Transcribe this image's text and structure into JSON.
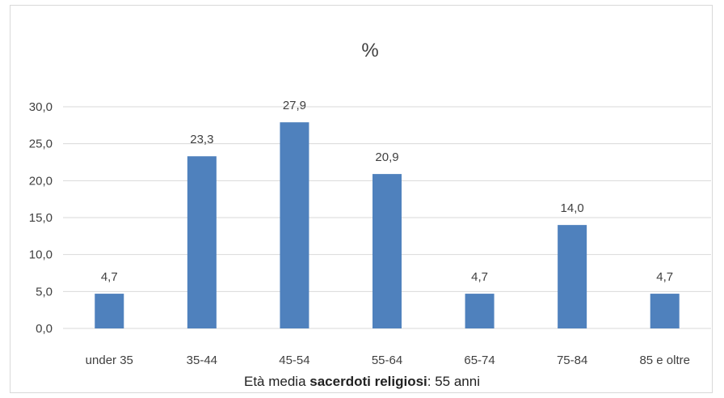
{
  "chart_data": {
    "type": "bar",
    "title": "%",
    "categories": [
      "under 35",
      "35-44",
      "45-54",
      "55-64",
      "65-74",
      "75-84",
      "85 e oltre"
    ],
    "values": [
      4.7,
      23.3,
      27.9,
      20.9,
      4.7,
      14.0,
      4.7
    ],
    "value_labels": [
      "4,7",
      "23,3",
      "27,9",
      "20,9",
      "4,7",
      "14,0",
      "4,7"
    ],
    "y_ticks": [
      0,
      5,
      10,
      15,
      20,
      25,
      30
    ],
    "y_tick_labels": [
      "0,0",
      "5,0",
      "10,0",
      "15,0",
      "20,0",
      "25,0",
      "30,0"
    ],
    "ylim": [
      0,
      30
    ],
    "grid": true,
    "legend": "none",
    "bar_color": "#4f81bd",
    "grid_color": "#d9d9d9"
  },
  "caption": {
    "prefix": "Età media ",
    "bold": "sacerdoti religiosi",
    "suffix": ":  55 anni"
  }
}
